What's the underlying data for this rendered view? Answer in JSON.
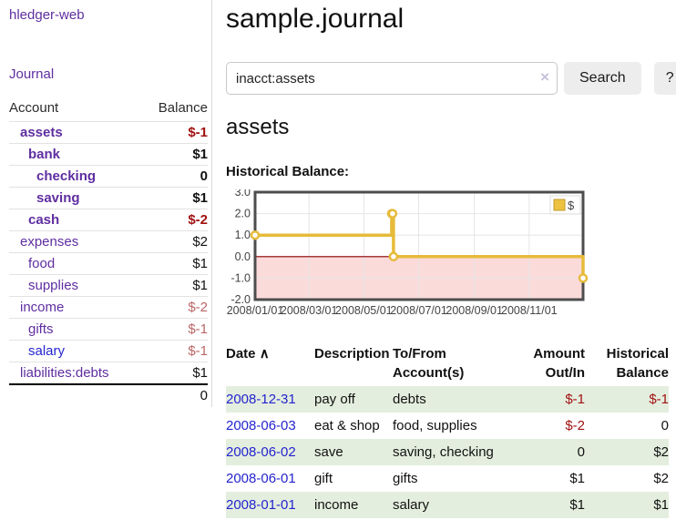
{
  "app": {
    "title": "hledger-web"
  },
  "sidebar": {
    "journal_link": "Journal",
    "accounts_table": {
      "headers": {
        "account": "Account",
        "balance": "Balance"
      },
      "rows": [
        {
          "name": "assets",
          "level": 0,
          "bold": true,
          "balance": "$-1",
          "balance_style": "neg-strong"
        },
        {
          "name": "bank",
          "level": 1,
          "bold": true,
          "balance": "$1",
          "balance_style": "pos-strong"
        },
        {
          "name": "checking",
          "level": 2,
          "bold": true,
          "balance": "0",
          "balance_style": "pos-strong"
        },
        {
          "name": "saving",
          "level": 2,
          "bold": true,
          "balance": "$1",
          "balance_style": "pos-strong"
        },
        {
          "name": "cash",
          "level": 1,
          "bold": true,
          "balance": "$-2",
          "balance_style": "neg-strong"
        },
        {
          "name": "expenses",
          "level": 0,
          "bold": false,
          "balance": "$2",
          "balance_style": "pos"
        },
        {
          "name": "food",
          "level": 1,
          "bold": false,
          "balance": "$1",
          "balance_style": "pos"
        },
        {
          "name": "supplies",
          "level": 1,
          "bold": false,
          "balance": "$1",
          "balance_style": "pos"
        },
        {
          "name": "income",
          "level": 0,
          "bold": false,
          "balance": "$-2",
          "balance_style": "neg-soft"
        },
        {
          "name": "gifts",
          "level": 1,
          "bold": false,
          "balance": "$-1",
          "balance_style": "neg-soft"
        },
        {
          "name": "salary",
          "level": 1,
          "bold": false,
          "link_color": "blue",
          "balance": "$-1",
          "balance_style": "neg-soft"
        },
        {
          "name": "liabilities:debts",
          "level": 0,
          "bold": false,
          "balance": "$1",
          "balance_style": "pos"
        }
      ],
      "total": "0"
    }
  },
  "main": {
    "title": "sample.journal",
    "search": {
      "value": "inacct:assets",
      "clear_icon": "×",
      "button_label": "Search",
      "help_label": "?"
    },
    "account_heading": "assets",
    "chart_label": "Historical Balance:"
  },
  "chart_data": {
    "type": "line",
    "step": true,
    "title": "Historical Balance",
    "series": [
      {
        "name": "$",
        "color": "#e7bb3a",
        "points": [
          [
            "2008-01-01",
            1
          ],
          [
            "2008-06-01",
            2
          ],
          [
            "2008-06-02",
            2
          ],
          [
            "2008-06-03",
            0
          ],
          [
            "2008-12-31",
            -1
          ]
        ]
      }
    ],
    "x_domain": [
      "2008-01-01",
      "2008-12-31"
    ],
    "xticks": [
      {
        "label": "2008/01/01",
        "date": "2008-01-01"
      },
      {
        "label": "2008/03/01",
        "date": "2008-03-01"
      },
      {
        "label": "2008/05/01",
        "date": "2008-05-01"
      },
      {
        "label": "2008/07/01",
        "date": "2008-07-01"
      },
      {
        "label": "2008/09/01",
        "date": "2008-09-01"
      },
      {
        "label": "2008/11/01",
        "date": "2008-11-01"
      }
    ],
    "ylim": [
      -2,
      3
    ],
    "yticks": [
      3,
      2,
      1,
      0,
      -1,
      -2
    ],
    "ytick_labels": [
      "3.0",
      "2.0",
      "1.0",
      "0.0",
      "-1.0",
      "-2.0"
    ],
    "grid": true,
    "legend": {
      "label": "$",
      "position": "top-right"
    },
    "negative_region_fill": "#fbdada",
    "zero_line_color": "#8b0000",
    "marker_fill": "#ffffff",
    "legend_swatch_fill": "#edc240",
    "legend_swatch_stroke": "#c19b2b",
    "border_color": "#4d4d4d",
    "grid_color": "#e5e5e5",
    "axis_text_color": "#444444"
  },
  "register_table": {
    "headers": {
      "date": "Date",
      "sort_indicator": "∧",
      "description": "Description",
      "accounts": "To/From Account(s)",
      "amount": "Amount Out/In",
      "balance": "Historical Balance"
    },
    "rows": [
      {
        "date": "2008-12-31",
        "description": "pay off",
        "accounts": "debts",
        "amount": "$-1",
        "amount_neg": true,
        "balance": "$-1",
        "balance_neg": true
      },
      {
        "date": "2008-06-03",
        "description": "eat & shop",
        "accounts": "food, supplies",
        "amount": "$-2",
        "amount_neg": true,
        "balance": "0",
        "balance_neg": false
      },
      {
        "date": "2008-06-02",
        "description": "save",
        "accounts": "saving, checking",
        "amount": "0",
        "amount_neg": false,
        "balance": "$2",
        "balance_neg": false
      },
      {
        "date": "2008-06-01",
        "description": "gift",
        "accounts": "gifts",
        "amount": "$1",
        "amount_neg": false,
        "balance": "$2",
        "balance_neg": false
      },
      {
        "date": "2008-01-01",
        "description": "income",
        "accounts": "salary",
        "amount": "$1",
        "amount_neg": false,
        "balance": "$1",
        "balance_neg": false
      }
    ]
  },
  "colors": {
    "link_purple": "#5f2ea0",
    "link_blue": "#2525cd",
    "negative_strong": "#a11212",
    "negative_soft": "#bb6565",
    "row_stripe_green": "#e4eede",
    "chart_line_gold": "#e7bb3a"
  }
}
